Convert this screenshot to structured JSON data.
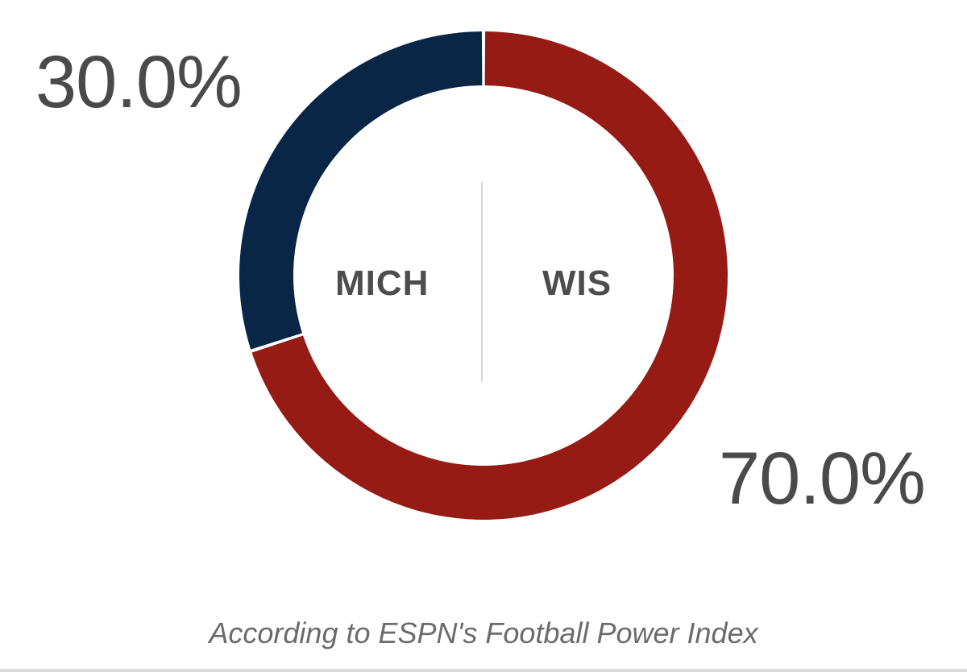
{
  "chart_data": {
    "type": "pie",
    "categories": [
      "MICH",
      "WIS"
    ],
    "values": [
      30.0,
      70.0
    ],
    "value_labels": [
      "30.0%",
      "70.0%"
    ],
    "colors": [
      "#0a2647",
      "#951b14"
    ],
    "caption": "According to ESPN's Football Power Index",
    "legend": "none"
  },
  "matchup": {
    "away_team": "MICH",
    "home_team": "WIS",
    "away_pct": "30.0%",
    "home_pct": "70.0%",
    "caption": "According to ESPN's Football Power Index"
  }
}
